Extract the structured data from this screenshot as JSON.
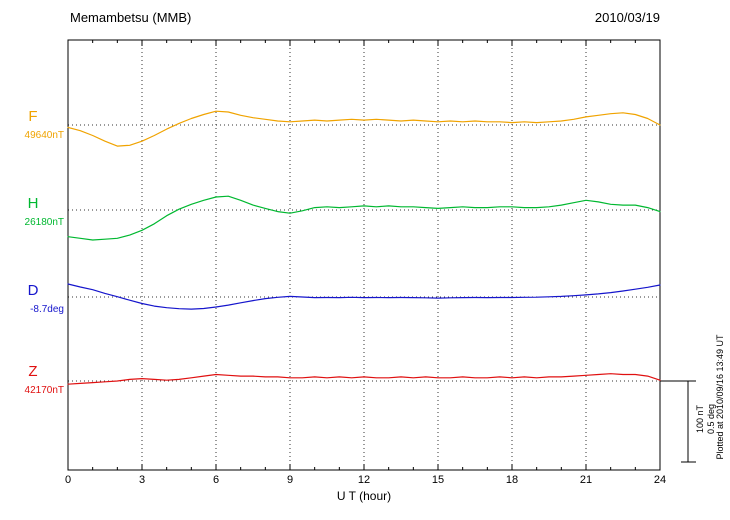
{
  "header": {
    "title": "Memambetsu (MMB)",
    "date": "2010/03/19"
  },
  "scale_bar": {
    "nt_label": "100 nT",
    "deg_label": "0.5 deg"
  },
  "plotted_note": "Plotted at 2010/09/16 13:49 UT",
  "colors": {
    "background": "#ffffff",
    "axis": "#000000",
    "grid": "#333333"
  },
  "chart_data": {
    "type": "line",
    "title": "Memambetsu (MMB) magnetogram 2010/03/19",
    "xlabel": "U T (hour)",
    "x_min": 0,
    "x_max": 24,
    "x_step_hours": 0.5,
    "x_ticks": [
      0,
      3,
      6,
      9,
      12,
      15,
      18,
      21,
      24
    ],
    "grid_hours": [
      3,
      6,
      9,
      12,
      15,
      18,
      21
    ],
    "scale": {
      "nt_per_bar": 100,
      "deg_per_bar": 0.5
    },
    "series": [
      {
        "name": "F",
        "unit": "nT",
        "baseline": 49640,
        "baseline_label": "49640nT",
        "color": "#f0a300",
        "offsets": [
          -3,
          -7,
          -13,
          -20,
          -26,
          -25,
          -20,
          -13,
          -5,
          2,
          8,
          13,
          17,
          16,
          12,
          9,
          7,
          5,
          4,
          5,
          6,
          5,
          6,
          7,
          6,
          7,
          6,
          5,
          6,
          5,
          4,
          5,
          4,
          5,
          4,
          4,
          3,
          4,
          3,
          4,
          5,
          7,
          10,
          12,
          14,
          15,
          13,
          8,
          0
        ]
      },
      {
        "name": "H",
        "unit": "nT",
        "baseline": 26180,
        "baseline_label": "26180nT",
        "color": "#00b830",
        "offsets": [
          -33,
          -35,
          -37,
          -36,
          -35,
          -31,
          -25,
          -17,
          -7,
          1,
          7,
          12,
          16,
          17,
          12,
          6,
          2,
          -2,
          -4,
          -1,
          3,
          4,
          3,
          4,
          5,
          4,
          5,
          4,
          4,
          3,
          2,
          3,
          4,
          3,
          3,
          4,
          4,
          3,
          3,
          4,
          6,
          9,
          12,
          10,
          7,
          6,
          6,
          3,
          -2
        ]
      },
      {
        "name": "D",
        "unit": "deg",
        "baseline": -8.7,
        "baseline_label": "-8.7deg",
        "color": "#1515cc",
        "offsets": [
          0.08,
          0.062,
          0.045,
          0.022,
          0.002,
          -0.02,
          -0.04,
          -0.056,
          -0.066,
          -0.072,
          -0.075,
          -0.071,
          -0.062,
          -0.05,
          -0.036,
          -0.022,
          -0.01,
          -0.002,
          0.004,
          0.0,
          -0.004,
          -0.003,
          -0.004,
          -0.002,
          -0.004,
          -0.003,
          -0.004,
          -0.003,
          -0.004,
          -0.005,
          -0.007,
          -0.005,
          -0.004,
          -0.003,
          -0.004,
          -0.003,
          -0.003,
          -0.002,
          -0.001,
          0.001,
          0.004,
          0.008,
          0.013,
          0.019,
          0.027,
          0.037,
          0.048,
          0.06,
          0.074
        ]
      },
      {
        "name": "Z",
        "unit": "nT",
        "baseline": 42170,
        "baseline_label": "42170nT",
        "color": "#e01010",
        "offsets": [
          -4,
          -3,
          -2,
          -1,
          0,
          2,
          3,
          2,
          1,
          2,
          4,
          6,
          8,
          7,
          6,
          6,
          5,
          5,
          4,
          4,
          5,
          4,
          5,
          4,
          5,
          4,
          4,
          5,
          4,
          5,
          4,
          4,
          5,
          4,
          4,
          5,
          4,
          5,
          4,
          5,
          5,
          6,
          7,
          8,
          9,
          8,
          8,
          6,
          1
        ]
      }
    ]
  }
}
